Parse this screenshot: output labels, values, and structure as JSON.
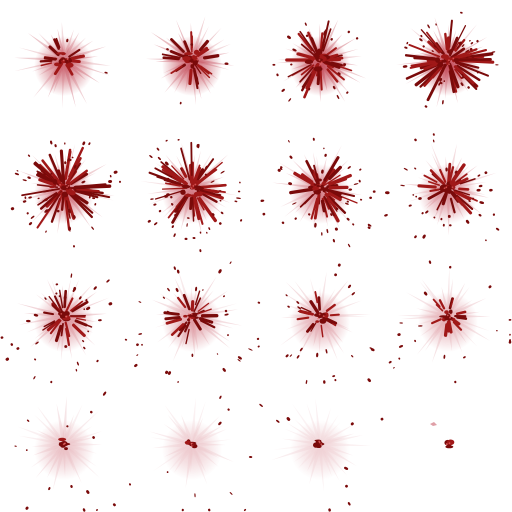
{
  "sprite_sheet": {
    "grid": {
      "columns": 4,
      "rows": 4
    },
    "colors": {
      "background": "#ffffff",
      "glow": "#c0404f",
      "blood_dark": "#7a0a0a",
      "blood_mid": "#a01818",
      "highlight": "#e86a6a"
    },
    "frames": [
      {
        "index": 1,
        "glow": 0.85,
        "spray": 0.15,
        "splat": 0.55,
        "drops": 0.05
      },
      {
        "index": 2,
        "glow": 0.95,
        "spray": 0.35,
        "splat": 0.85,
        "drops": 0.1
      },
      {
        "index": 3,
        "glow": 1.0,
        "spray": 0.7,
        "splat": 0.95,
        "drops": 0.45
      },
      {
        "index": 4,
        "glow": 1.0,
        "spray": 1.0,
        "splat": 1.0,
        "drops": 0.85
      },
      {
        "index": 5,
        "glow": 0.85,
        "spray": 1.0,
        "splat": 0.9,
        "drops": 1.0
      },
      {
        "index": 6,
        "glow": 0.75,
        "spray": 0.95,
        "splat": 0.8,
        "drops": 1.0
      },
      {
        "index": 7,
        "glow": 0.7,
        "spray": 0.7,
        "splat": 0.65,
        "drops": 0.9
      },
      {
        "index": 8,
        "glow": 0.65,
        "spray": 0.5,
        "splat": 0.55,
        "drops": 0.8
      },
      {
        "index": 9,
        "glow": 0.6,
        "spray": 0.35,
        "splat": 0.45,
        "drops": 0.75
      },
      {
        "index": 10,
        "glow": 0.55,
        "spray": 0.25,
        "splat": 0.4,
        "drops": 0.65
      },
      {
        "index": 11,
        "glow": 0.5,
        "spray": 0.15,
        "splat": 0.35,
        "drops": 0.55
      },
      {
        "index": 12,
        "glow": 0.45,
        "spray": 0.1,
        "splat": 0.3,
        "drops": 0.45
      },
      {
        "index": 13,
        "glow": 0.35,
        "spray": 0.0,
        "splat": 0.3,
        "drops": 0.3
      },
      {
        "index": 14,
        "glow": 0.3,
        "spray": 0.0,
        "splat": 0.2,
        "drops": 0.25
      },
      {
        "index": 15,
        "glow": 0.25,
        "spray": 0.0,
        "splat": 0.15,
        "drops": 0.2
      },
      {
        "index": 16,
        "glow": 0.0,
        "spray": 0.0,
        "splat": 0.05,
        "drops": 0.0
      }
    ]
  }
}
